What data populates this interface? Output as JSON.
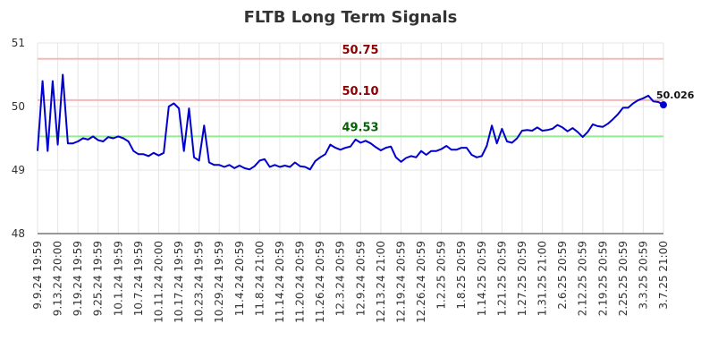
{
  "chart_data": {
    "type": "line",
    "title": "FLTB Long Term Signals",
    "xlabel": "",
    "ylabel": "",
    "ylim": [
      48,
      51
    ],
    "yticks": [
      "48",
      "49",
      "50",
      "51"
    ],
    "grid": true,
    "line_color": "#0000cc",
    "x_tick_labels": [
      "9.9.24 19:59",
      "9.13.24 20:00",
      "9.19.24 19:59",
      "9.25.24 19:59",
      "10.1.24 19:59",
      "10.7.24 19:59",
      "10.11.24 20:00",
      "10.17.24 19:59",
      "10.23.24 19:59",
      "10.29.24 19:59",
      "11.4.24 20:59",
      "11.8.24 21:00",
      "11.14.24 20:59",
      "11.20.24 20:59",
      "11.26.24 20:59",
      "12.3.24 20:59",
      "12.9.24 20:59",
      "12.13.24 21:00",
      "12.19.24 20:59",
      "12.26.24 20:59",
      "1.2.25 20:59",
      "1.8.25 20:59",
      "1.14.25 20:59",
      "1.21.25 20:59",
      "1.27.25 20:59",
      "1.31.25 21:00",
      "2.6.25 20:59",
      "2.12.25 20:59",
      "2.19.25 20:59",
      "2.25.25 20:59",
      "3.3.25 20:59",
      "3.7.25 21:00"
    ],
    "reference_lines": [
      {
        "label": "50.75",
        "value": 50.75,
        "line_color": "#f5b7b7",
        "label_color": "#8b0000"
      },
      {
        "label": "50.10",
        "value": 50.1,
        "line_color": "#f5b7b7",
        "label_color": "#8b0000"
      },
      {
        "label": "49.53",
        "value": 49.53,
        "line_color": "#90ee90",
        "label_color": "#006400"
      }
    ],
    "last_value_label": "50.026",
    "series": [
      {
        "values": [
          49.3,
          50.4,
          49.3,
          50.4,
          49.4,
          50.5,
          49.42,
          49.42,
          49.45,
          49.5,
          49.48,
          49.53,
          49.47,
          49.45,
          49.52,
          49.5,
          49.53,
          49.5,
          49.45,
          49.3,
          49.25,
          49.25,
          49.22,
          49.27,
          49.23,
          49.27,
          50.0,
          50.05,
          49.97,
          49.3,
          49.97,
          49.2,
          49.15,
          49.7,
          49.12,
          49.08,
          49.08,
          49.05,
          49.08,
          49.03,
          49.07,
          49.03,
          49.01,
          49.06,
          49.15,
          49.17,
          49.05,
          49.08,
          49.05,
          49.07,
          49.05,
          49.12,
          49.06,
          49.05,
          49.01,
          49.14,
          49.2,
          49.25,
          49.4,
          49.35,
          49.32,
          49.35,
          49.37,
          49.48,
          49.43,
          49.46,
          49.42,
          49.36,
          49.31,
          49.35,
          49.37,
          49.2,
          49.13,
          49.19,
          49.22,
          49.2,
          49.3,
          49.24,
          49.3,
          49.3,
          49.33,
          49.38,
          49.32,
          49.32,
          49.35,
          49.35,
          49.24,
          49.2,
          49.22,
          49.38,
          49.7,
          49.42,
          49.65,
          49.45,
          49.43,
          49.5,
          49.62,
          49.63,
          49.62,
          49.67,
          49.62,
          49.63,
          49.65,
          49.71,
          49.67,
          49.61,
          49.66,
          49.6,
          49.52,
          49.6,
          49.72,
          49.69,
          49.68,
          49.73,
          49.8,
          49.88,
          49.98,
          49.98,
          50.05,
          50.1,
          50.13,
          50.17,
          50.08,
          50.07,
          50.026
        ]
      }
    ]
  }
}
